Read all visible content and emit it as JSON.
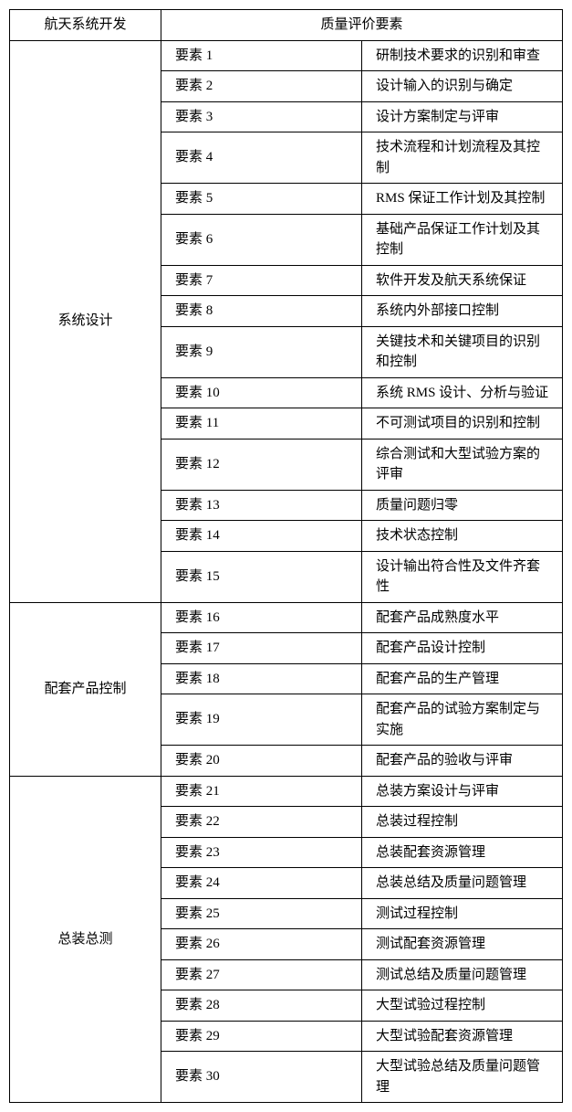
{
  "table": {
    "header": {
      "left": "航天系统开发",
      "right": "质量评价要素"
    },
    "columns": {
      "category_width": 145,
      "element_width": 90
    },
    "sections": [
      {
        "category": "系统设计",
        "rows": [
          {
            "element": "要素 1",
            "desc": "研制技术要求的识别和审查"
          },
          {
            "element": "要素 2",
            "desc": "设计输入的识别与确定"
          },
          {
            "element": "要素 3",
            "desc": "设计方案制定与评审"
          },
          {
            "element": "要素 4",
            "desc": "技术流程和计划流程及其控制"
          },
          {
            "element": "要素 5",
            "desc": "RMS 保证工作计划及其控制"
          },
          {
            "element": "要素 6",
            "desc": "基础产品保证工作计划及其控制"
          },
          {
            "element": "要素 7",
            "desc": "软件开发及航天系统保证"
          },
          {
            "element": "要素 8",
            "desc": "系统内外部接口控制"
          },
          {
            "element": "要素 9",
            "desc": "关键技术和关键项目的识别和控制"
          },
          {
            "element": "要素 10",
            "desc": "系统 RMS 设计、分析与验证"
          },
          {
            "element": "要素 11",
            "desc": "不可测试项目的识别和控制"
          },
          {
            "element": "要素 12",
            "desc": "综合测试和大型试验方案的评审"
          },
          {
            "element": "要素 13",
            "desc": "质量问题归零"
          },
          {
            "element": "要素 14",
            "desc": "技术状态控制"
          },
          {
            "element": "要素 15",
            "desc": "设计输出符合性及文件齐套性"
          }
        ]
      },
      {
        "category": "配套产品控制",
        "rows": [
          {
            "element": "要素 16",
            "desc": "配套产品成熟度水平"
          },
          {
            "element": "要素 17",
            "desc": "配套产品设计控制"
          },
          {
            "element": "要素 18",
            "desc": "配套产品的生产管理"
          },
          {
            "element": "要素 19",
            "desc": "配套产品的试验方案制定与实施"
          },
          {
            "element": "要素 20",
            "desc": "配套产品的验收与评审"
          }
        ]
      },
      {
        "category": "总装总测",
        "rows": [
          {
            "element": "要素 21",
            "desc": "总装方案设计与评审"
          },
          {
            "element": "要素 22",
            "desc": "总装过程控制"
          },
          {
            "element": "要素 23",
            "desc": "总装配套资源管理"
          },
          {
            "element": "要素 24",
            "desc": "总装总结及质量问题管理"
          },
          {
            "element": "要素 25",
            "desc": "测试过程控制"
          },
          {
            "element": "要素 26",
            "desc": "测试配套资源管理"
          },
          {
            "element": "要素 27",
            "desc": "测试总结及质量问题管理"
          },
          {
            "element": "要素 28",
            "desc": "大型试验过程控制"
          },
          {
            "element": "要素 29",
            "desc": "大型试验配套资源管理"
          },
          {
            "element": "要素 30",
            "desc": "大型试验总结及质量问题管理"
          }
        ]
      }
    ]
  },
  "style": {
    "background_color": "#ffffff",
    "border_color": "#000000",
    "text_color": "#000000",
    "font_family": "SimSun",
    "font_size": 15
  }
}
